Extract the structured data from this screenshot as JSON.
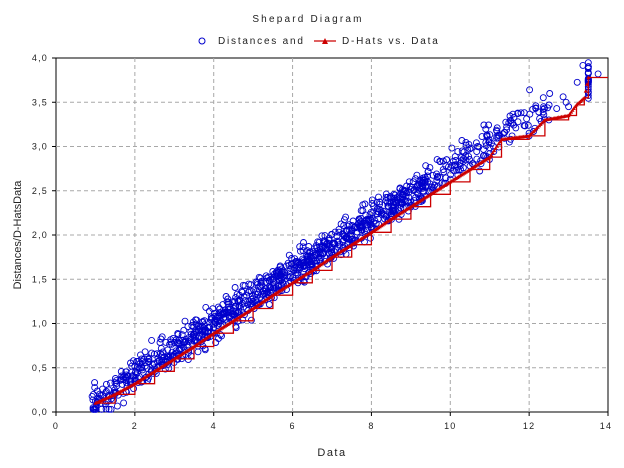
{
  "chart_data": {
    "type": "scatter",
    "title": "Shepard Diagram",
    "xlabel": "Data",
    "ylabel": "Distances/D-HatsData",
    "xlim": [
      0,
      14
    ],
    "ylim": [
      0,
      4
    ],
    "x_ticks": [
      "0",
      "2",
      "4",
      "6",
      "8",
      "10",
      "12",
      "14"
    ],
    "y_ticks": [
      "0,0",
      "0,5",
      "1,0",
      "1,5",
      "2,0",
      "2,5",
      "3,0",
      "3,5",
      "4,0"
    ],
    "grid": true,
    "legend_position": "top",
    "series": [
      {
        "name": "Distances and",
        "marker": "open-circle",
        "color": "#0000cc",
        "trend": {
          "x_start": 0.9,
          "x_end": 13.5,
          "y_start": 0.1,
          "y_end": 3.78,
          "spread": 0.1
        },
        "points_approx": [
          [
            1.0,
            0.12
          ],
          [
            1.5,
            0.22
          ],
          [
            2.0,
            0.35
          ],
          [
            2.5,
            0.5
          ],
          [
            3.0,
            0.65
          ],
          [
            3.5,
            0.8
          ],
          [
            4.0,
            0.95
          ],
          [
            4.5,
            1.1
          ],
          [
            5.0,
            1.25
          ],
          [
            5.5,
            1.4
          ],
          [
            6.0,
            1.52
          ],
          [
            6.5,
            1.66
          ],
          [
            7.0,
            1.8
          ],
          [
            7.5,
            1.95
          ],
          [
            8.0,
            2.08
          ],
          [
            8.5,
            2.22
          ],
          [
            9.0,
            2.37
          ],
          [
            9.5,
            2.5
          ],
          [
            10.0,
            2.63
          ],
          [
            10.5,
            2.78
          ],
          [
            11.0,
            2.92
          ],
          [
            11.5,
            3.05
          ],
          [
            12.0,
            3.15
          ],
          [
            12.5,
            3.3
          ],
          [
            13.0,
            3.45
          ],
          [
            13.5,
            3.9
          ],
          [
            13.75,
            3.82
          ]
        ]
      },
      {
        "name": "D-Hats vs. Data",
        "marker": "line-with-dots",
        "color": "#cc0000",
        "line_style": "step",
        "points": [
          [
            1.0,
            0.1
          ],
          [
            1.5,
            0.2
          ],
          [
            2.0,
            0.32
          ],
          [
            2.5,
            0.46
          ],
          [
            3.0,
            0.6
          ],
          [
            3.5,
            0.74
          ],
          [
            4.0,
            0.89
          ],
          [
            4.5,
            1.03
          ],
          [
            5.0,
            1.17
          ],
          [
            5.5,
            1.32
          ],
          [
            6.0,
            1.46
          ],
          [
            6.5,
            1.6
          ],
          [
            7.0,
            1.75
          ],
          [
            7.5,
            1.89
          ],
          [
            8.0,
            2.03
          ],
          [
            8.5,
            2.18
          ],
          [
            9.0,
            2.32
          ],
          [
            9.5,
            2.46
          ],
          [
            10.0,
            2.6
          ],
          [
            10.5,
            2.74
          ],
          [
            11.0,
            2.88
          ],
          [
            11.3,
            3.08
          ],
          [
            12.0,
            3.12
          ],
          [
            12.4,
            3.3
          ],
          [
            13.0,
            3.35
          ],
          [
            13.2,
            3.47
          ],
          [
            13.4,
            3.55
          ],
          [
            13.5,
            3.78
          ],
          [
            14.0,
            3.78
          ]
        ]
      }
    ]
  }
}
